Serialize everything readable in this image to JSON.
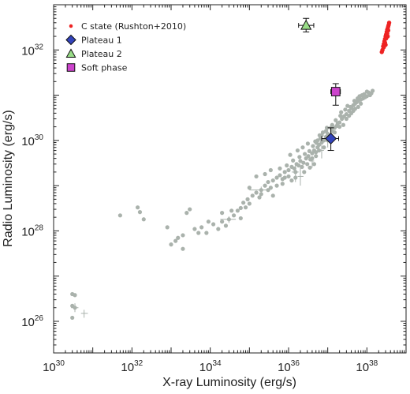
{
  "chart_data": {
    "type": "scatter",
    "x_scale": "log",
    "y_scale": "log",
    "xlabel": "X-ray Luminosity (erg/s)",
    "ylabel": "Radio Luminosity (erg/s)",
    "xlim": [
      1e+30,
      1e+39
    ],
    "ylim": [
      2e+25,
      1e+33
    ],
    "x_ticks": [
      {
        "value": 1e+30,
        "base": "10",
        "exp": "30"
      },
      {
        "value": 1e+32,
        "base": "10",
        "exp": "32"
      },
      {
        "value": 1e+34,
        "base": "10",
        "exp": "34"
      },
      {
        "value": 1e+36,
        "base": "10",
        "exp": "36"
      },
      {
        "value": 1e+38,
        "base": "10",
        "exp": "38"
      }
    ],
    "y_ticks": [
      {
        "value": 1e+26,
        "base": "10",
        "exp": "26"
      },
      {
        "value": 1e+28,
        "base": "10",
        "exp": "28"
      },
      {
        "value": 1e+30,
        "base": "10",
        "exp": "30"
      },
      {
        "value": 1e+32,
        "base": "10",
        "exp": "32"
      }
    ],
    "grid": false,
    "legend_position": "top-left",
    "series": [
      {
        "name": "C state (Rushton+2010)",
        "marker": "circle",
        "color": "#ee2222",
        "points": [
          [
            2.5e+38,
            1e+32
          ],
          [
            2.6e+38,
            1.2e+32
          ],
          [
            2.7e+38,
            1.35e+32
          ],
          [
            2.8e+38,
            1.55e+32
          ],
          [
            2.9e+38,
            1.75e+32
          ],
          [
            3e+38,
            2e+32
          ],
          [
            3.1e+38,
            2.2e+32
          ],
          [
            3.2e+38,
            2.5e+32
          ],
          [
            3.3e+38,
            2.8e+32
          ],
          [
            3.4e+38,
            3e+32
          ],
          [
            3.5e+38,
            3.3e+32
          ],
          [
            3.6e+38,
            3.6e+32
          ],
          [
            2.4e+38,
            9e+31
          ],
          [
            2.7e+38,
            1.15e+32
          ],
          [
            2.9e+38,
            1.45e+32
          ],
          [
            3.1e+38,
            1.8e+32
          ],
          [
            3.3e+38,
            2.3e+32
          ],
          [
            3.5e+38,
            2.7e+32
          ],
          [
            3.7e+38,
            4e+32
          ],
          [
            3e+38,
            1.3e+32
          ],
          [
            3.4e+38,
            2e+32
          ]
        ]
      },
      {
        "name": "Plateau 1",
        "marker": "diamond",
        "color": "#3344bb",
        "points": [
          [
            1.2e+37,
            1.1e+30
          ]
        ],
        "xerr": [
          [
            7e+36,
            1.9e+37
          ]
        ],
        "yerr": [
          [
            6e+29,
            1.9e+30
          ]
        ]
      },
      {
        "name": "Plateau 2",
        "marker": "triangle",
        "color": "#99dd88",
        "points": [
          [
            2.8e+36,
            3.5e+32
          ]
        ],
        "xerr": [
          [
            1.8e+36,
            4.4e+36
          ]
        ],
        "yerr": [
          [
            2.5e+32,
            5e+32
          ]
        ]
      },
      {
        "name": "Soft phase",
        "marker": "square",
        "color": "#cc44cc",
        "points": [
          [
            1.6e+37,
            1.2e+31
          ]
        ],
        "xerr": [
          [
            1.2e+37,
            2.1e+37
          ]
        ],
        "yerr": [
          [
            6e+30,
            1.8e+31
          ]
        ]
      }
    ],
    "background_points": {
      "color": "#aab2ac",
      "points": [
        [
          3e+30,
          1.2e+26
        ],
        [
          3.5e+30,
          2e+26
        ],
        [
          3e+30,
          2.2e+26
        ],
        [
          3.5e+30,
          3.8e+26
        ],
        [
          3e+30,
          4e+26
        ],
        [
          5e+31,
          2.2e+28
        ],
        [
          1.4e+32,
          3.3e+28
        ],
        [
          1.6e+32,
          2.6e+28
        ],
        [
          2e+32,
          1.8e+28
        ],
        [
          8e+32,
          1.2e+28
        ],
        [
          1e+33,
          5e+27
        ],
        [
          1.3e+33,
          6e+27
        ],
        [
          1.5e+33,
          7e+27
        ],
        [
          2e+33,
          4e+27
        ],
        [
          2.5e+33,
          2.5e+28
        ],
        [
          3e+33,
          3e+28
        ],
        [
          2e+33,
          8e+27
        ],
        [
          5e+33,
          9e+27
        ],
        [
          6e+33,
          1.2e+28
        ],
        [
          8e+33,
          9e+27
        ],
        [
          1.2e+34,
          1.4e+28
        ],
        [
          1.6e+34,
          1.1e+28
        ],
        [
          2e+34,
          1.6e+28
        ],
        [
          2.5e+34,
          1.3e+28
        ],
        [
          3e+34,
          1.8e+28
        ],
        [
          4e+34,
          2.2e+28
        ],
        [
          5e+34,
          2.8e+28
        ],
        [
          6e+34,
          3.2e+28
        ],
        [
          7e+34,
          4.2e+28
        ],
        [
          8e+34,
          3.3e+28
        ],
        [
          9e+34,
          5e+28
        ],
        [
          1e+35,
          4e+28
        ],
        [
          1.2e+35,
          6e+28
        ],
        [
          1.5e+35,
          7e+28
        ],
        [
          1.8e+35,
          5.5e+28
        ],
        [
          2e+35,
          8e+28
        ],
        [
          2.5e+35,
          1e+29
        ],
        [
          3e+35,
          1.2e+29
        ],
        [
          3.5e+35,
          9e+28
        ],
        [
          4e+35,
          1.3e+29
        ],
        [
          5e+35,
          1.5e+29
        ],
        [
          6e+35,
          1.7e+29
        ],
        [
          7e+35,
          1.4e+29
        ],
        [
          8e+35,
          2e+29
        ],
        [
          1e+36,
          2.2e+29
        ],
        [
          1.2e+36,
          2.6e+29
        ],
        [
          1.4e+36,
          2.4e+29
        ],
        [
          1.6e+36,
          3e+29
        ],
        [
          1.8e+36,
          2.8e+29
        ],
        [
          2e+36,
          3.5e+29
        ],
        [
          2.4e+36,
          3.2e+29
        ],
        [
          2.8e+36,
          4e+29
        ],
        [
          3.2e+36,
          4.5e+29
        ],
        [
          3.6e+36,
          3.8e+29
        ],
        [
          4e+36,
          5.2e+29
        ],
        [
          4.5e+36,
          6e+29
        ],
        [
          5e+36,
          5.5e+29
        ],
        [
          5.5e+36,
          7e+29
        ],
        [
          6e+36,
          8e+29
        ],
        [
          7e+36,
          9e+29
        ],
        [
          8e+36,
          1e+30
        ],
        [
          9e+36,
          1.2e+30
        ],
        [
          1e+37,
          1.4e+30
        ],
        [
          1.1e+37,
          1.3e+30
        ],
        [
          1.3e+37,
          1.6e+30
        ],
        [
          1.5e+37,
          1.9e+30
        ],
        [
          1.7e+37,
          2.1e+30
        ],
        [
          2e+37,
          2.5e+30
        ],
        [
          2.3e+37,
          3e+30
        ],
        [
          2.6e+37,
          3.4e+30
        ],
        [
          3e+37,
          3.8e+30
        ],
        [
          3.5e+37,
          4.5e+30
        ],
        [
          4e+37,
          5.2e+30
        ],
        [
          4.5e+37,
          6e+30
        ],
        [
          5e+37,
          6.5e+30
        ],
        [
          5.5e+37,
          7e+30
        ],
        [
          6e+37,
          7.5e+30
        ],
        [
          7e+37,
          8e+30
        ],
        [
          8e+37,
          8.5e+30
        ],
        [
          9e+37,
          9e+30
        ],
        [
          1e+38,
          9.5e+30
        ],
        [
          1.2e+38,
          1e+31
        ],
        [
          1.3e+38,
          1.1e+31
        ],
        [
          1.4e+38,
          1.25e+31
        ],
        [
          2e+37,
          2e+30
        ],
        [
          3e+37,
          3e+30
        ],
        [
          4e+37,
          4e+30
        ],
        [
          2.5e+37,
          2.2e+30
        ],
        [
          3.5e+37,
          3.5e+30
        ],
        [
          5e+37,
          5e+30
        ],
        [
          6e+37,
          5.5e+30
        ],
        [
          7e+37,
          6.5e+30
        ],
        [
          1.5e+37,
          1.5e+30
        ],
        [
          1.8e+37,
          2.4e+30
        ],
        [
          1e+37,
          1e+30
        ],
        [
          8e+36,
          7e+29
        ],
        [
          6e+36,
          6e+29
        ],
        [
          5e+36,
          4.5e+29
        ],
        [
          4e+36,
          4e+29
        ],
        [
          3e+36,
          3e+29
        ],
        [
          2.2e+36,
          2.6e+29
        ],
        [
          1.5e+36,
          2e+29
        ],
        [
          1e+36,
          1.6e+29
        ],
        [
          7e+35,
          1.1e+29
        ],
        [
          5e+35,
          1e+29
        ],
        [
          3e+35,
          8e+28
        ],
        [
          2e+35,
          6.5e+28
        ],
        [
          6e+35,
          2.4e+29
        ],
        [
          9e+35,
          2.8e+29
        ],
        [
          1.3e+36,
          3.6e+29
        ],
        [
          1.9e+36,
          4.3e+29
        ],
        [
          2.6e+36,
          5e+29
        ],
        [
          3.4e+36,
          5.8e+29
        ],
        [
          4.2e+36,
          7.5e+29
        ],
        [
          5.2e+36,
          8.8e+29
        ],
        [
          6.5e+36,
          1.1e+30
        ],
        [
          9e+36,
          1.6e+30
        ],
        [
          1.2e+37,
          1.9e+30
        ],
        [
          1.6e+37,
          2.8e+30
        ],
        [
          2.1e+37,
          3.5e+30
        ],
        [
          2.8e+37,
          4.8e+30
        ],
        [
          3.8e+37,
          5.5e+30
        ],
        [
          4.8e+37,
          7.5e+30
        ],
        [
          6.5e+37,
          9.5e+30
        ],
        [
          8.5e+37,
          1.05e+31
        ],
        [
          1.1e+38,
          1.15e+31
        ],
        [
          1.5e+36,
          1.5e+29
        ],
        [
          2.5e+36,
          2e+29
        ],
        [
          3.5e+36,
          2.5e+29
        ],
        [
          4.5e+36,
          3e+29
        ],
        [
          1.2e+36,
          1.3e+29
        ],
        [
          8e+35,
          1.5e+29
        ],
        [
          4e+35,
          6e+28
        ],
        [
          1e+35,
          9e+28
        ],
        [
          2e+34,
          2.5e+28
        ],
        [
          3.5e+34,
          2.8e+28
        ],
        [
          6e+34,
          1.9e+28
        ],
        [
          9e+33,
          1.6e+28
        ],
        [
          4e+33,
          1.1e+28
        ],
        [
          1.5e+35,
          1.6e+29
        ],
        [
          2.5e+35,
          1.8e+29
        ],
        [
          3.5e+35,
          2.2e+29
        ],
        [
          1.1e+36,
          4.8e+29
        ],
        [
          1.7e+36,
          6e+29
        ],
        [
          2.3e+36,
          7e+29
        ],
        [
          3.1e+36,
          8.5e+29
        ],
        [
          6.2e+36,
          1.3e+30
        ],
        [
          7.5e+36,
          1.5e+30
        ],
        [
          4.5e+37,
          4.5e+30
        ],
        [
          5.8e+37,
          8.5e+30
        ],
        [
          7.5e+37,
          1e+31
        ],
        [
          1e+38,
          1.2e+31
        ],
        [
          2.2e+37,
          4.2e+30
        ],
        [
          3.2e+37,
          5.8e+30
        ],
        [
          1.3e+37,
          2.2e+30
        ],
        [
          9.5e+36,
          1.9e+30
        ],
        [
          7e+36,
          1.3e+30
        ],
        [
          5.5e+36,
          1e+30
        ],
        [
          4.8e+36,
          9.5e+29
        ]
      ]
    },
    "background_errorbars": [
      {
        "x": 3.5e+30,
        "y": 2e+26,
        "xerr": [
          2.8e+30,
          4.3e+30
        ],
        "yerr": [
          1.6e+26,
          2.5e+26
        ]
      },
      {
        "x": 6e+30,
        "y": 1.5e+26,
        "xerr": [
          5e+30,
          7.5e+30
        ],
        "yerr": [
          1.2e+26,
          1.8e+26
        ]
      },
      {
        "x": 3e+34,
        "y": 1.8e+28,
        "xerr": [
          1.8e+34,
          4.5e+34
        ],
        "yerr": [
          1.5e+28,
          2.1e+28
        ]
      },
      {
        "x": 2e+35,
        "y": 8e+28,
        "xerr": [
          1e+35,
          3e+35
        ],
        "yerr": [
          7e+28,
          9.5e+28
        ]
      },
      {
        "x": 1.5e+36,
        "y": 2e+29,
        "xerr": [
          1.2e+36,
          1.8e+36
        ],
        "yerr": [
          1.2e+29,
          3e+29
        ]
      },
      {
        "x": 2e+36,
        "y": 1.6e+29,
        "xerr": [
          1.7e+36,
          2.4e+36
        ],
        "yerr": [
          1e+29,
          2.5e+29
        ]
      },
      {
        "x": 4e+36,
        "y": 3.5e+29,
        "xerr": [
          3.5e+36,
          4.5e+36
        ],
        "yerr": [
          2.5e+29,
          4.5e+29
        ]
      },
      {
        "x": 7e+36,
        "y": 6e+29,
        "xerr": [
          6e+36,
          8e+36
        ],
        "yerr": [
          4e+29,
          8e+29
        ]
      },
      {
        "x": 1e+37,
        "y": 1.2e+30,
        "xerr": [
          8.5e+36,
          1.2e+37
        ],
        "yerr": [
          7e+29,
          1.8e+30
        ]
      }
    ]
  }
}
